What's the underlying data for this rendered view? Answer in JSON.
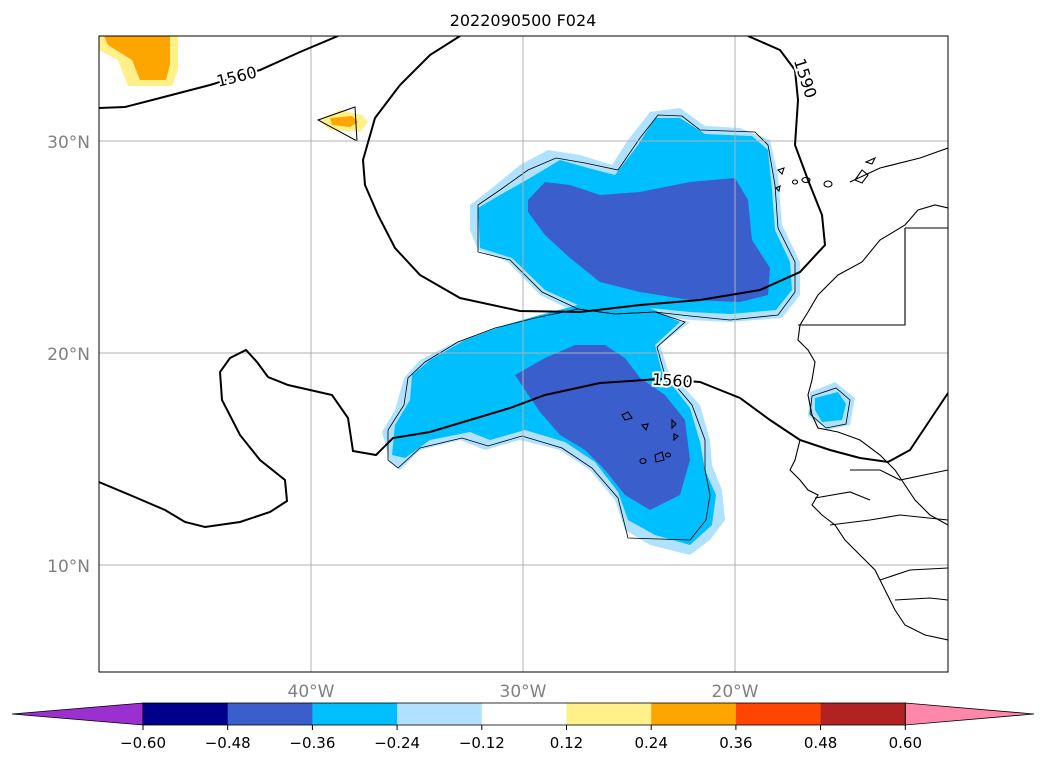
{
  "title": "2022090500 F024",
  "lat_labels": [
    "30°N",
    "20°N",
    "10°N"
  ],
  "lon_labels": [
    "40°W",
    "30°W",
    "20°W"
  ],
  "contour_labels": [
    "1560",
    "1590",
    "1560"
  ],
  "colorbar": {
    "colors": [
      "#9b30d0",
      "#00008b",
      "#3a5fcd",
      "#00bfff",
      "#b0e2ff",
      "#ffffff",
      "#fff08a",
      "#ffa500",
      "#ff4500",
      "#b22222",
      "#ff88aa"
    ],
    "tick_labels": [
      "−0.60",
      "−0.48",
      "−0.36",
      "−0.24",
      "−0.12",
      "0.12",
      "0.24",
      "0.36",
      "0.48",
      "0.60"
    ]
  },
  "colors": {
    "dark_blue": "#3a5fcd",
    "mid_blue": "#00bfff",
    "light_blue": "#b0e2ff",
    "yellow": "#fff08a",
    "orange": "#ffa500",
    "grid": "#b0b0b0",
    "lat_lon_label": "#808080"
  }
}
